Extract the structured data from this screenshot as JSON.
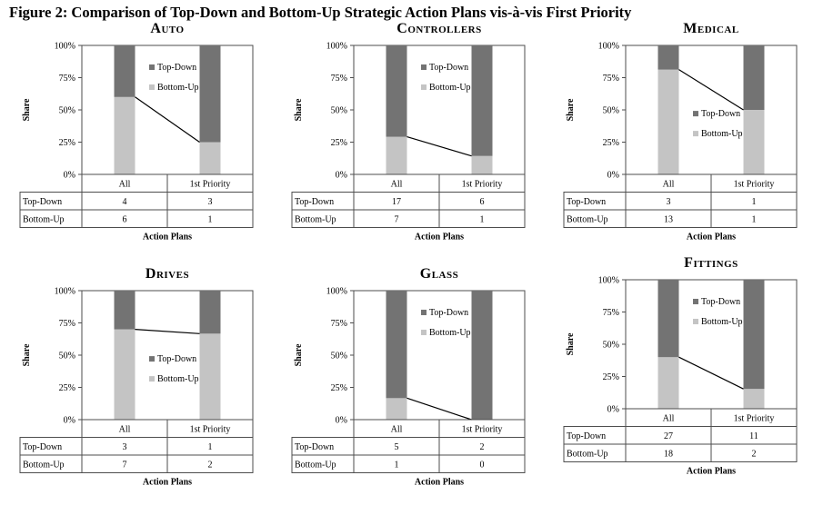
{
  "figure_title": "Figure 2: Comparison of Top-Down and Bottom-Up Strategic Action Plans vis-à-vis First Priority",
  "colors": {
    "top_down": "#737373",
    "bottom_up": "#c4c4c4",
    "grid": "#4d4d4d"
  },
  "chart_data": [
    {
      "type": "bar",
      "stacked": true,
      "percent": true,
      "title": "Auto",
      "xlabel": "Action Plans",
      "ylabel": "Share",
      "categories": [
        "All",
        "1st Priority"
      ],
      "yticks": [
        "0%",
        "25%",
        "50%",
        "75%",
        "100%"
      ],
      "ylim": [
        0,
        100
      ],
      "series": [
        {
          "name": "Top-Down",
          "values": [
            4,
            3
          ]
        },
        {
          "name": "Bottom-Up",
          "values": [
            6,
            1
          ]
        }
      ],
      "legend_position": "center-top"
    },
    {
      "type": "bar",
      "stacked": true,
      "percent": true,
      "title": "Controllers",
      "xlabel": "Action Plans",
      "ylabel": "Share",
      "categories": [
        "All",
        "1st Priority"
      ],
      "yticks": [
        "0%",
        "25%",
        "50%",
        "75%",
        "100%"
      ],
      "ylim": [
        0,
        100
      ],
      "series": [
        {
          "name": "Top-Down",
          "values": [
            17,
            6
          ]
        },
        {
          "name": "Bottom-Up",
          "values": [
            7,
            1
          ]
        }
      ],
      "legend_position": "center-top"
    },
    {
      "type": "bar",
      "stacked": true,
      "percent": true,
      "title": "Medical",
      "xlabel": "Action Plans",
      "ylabel": "Share",
      "categories": [
        "All",
        "1st Priority"
      ],
      "yticks": [
        "0%",
        "25%",
        "50%",
        "75%",
        "100%"
      ],
      "ylim": [
        0,
        100
      ],
      "series": [
        {
          "name": "Top-Down",
          "values": [
            3,
            1
          ]
        },
        {
          "name": "Bottom-Up",
          "values": [
            13,
            1
          ]
        }
      ],
      "legend_position": "center-middle"
    },
    {
      "type": "bar",
      "stacked": true,
      "percent": true,
      "title": "Drives",
      "xlabel": "Action Plans",
      "ylabel": "Share",
      "categories": [
        "All",
        "1st Priority"
      ],
      "yticks": [
        "0%",
        "25%",
        "50%",
        "75%",
        "100%"
      ],
      "ylim": [
        0,
        100
      ],
      "series": [
        {
          "name": "Top-Down",
          "values": [
            3,
            1
          ]
        },
        {
          "name": "Bottom-Up",
          "values": [
            7,
            2
          ]
        }
      ],
      "legend_position": "center-middle"
    },
    {
      "type": "bar",
      "stacked": true,
      "percent": true,
      "title": "Glass",
      "xlabel": "Action Plans",
      "ylabel": "Share",
      "categories": [
        "All",
        "1st Priority"
      ],
      "yticks": [
        "0%",
        "25%",
        "50%",
        "75%",
        "100%"
      ],
      "ylim": [
        0,
        100
      ],
      "series": [
        {
          "name": "Top-Down",
          "values": [
            5,
            2
          ]
        },
        {
          "name": "Bottom-Up",
          "values": [
            1,
            0
          ]
        }
      ],
      "legend_position": "center-top"
    },
    {
      "type": "bar",
      "stacked": true,
      "percent": true,
      "title": "Fittings",
      "xlabel": "Action Plans",
      "ylabel": "Share",
      "categories": [
        "All",
        "1st Priority"
      ],
      "yticks": [
        "0%",
        "25%",
        "50%",
        "75%",
        "100%"
      ],
      "ylim": [
        0,
        100
      ],
      "series": [
        {
          "name": "Top-Down",
          "values": [
            27,
            11
          ]
        },
        {
          "name": "Bottom-Up",
          "values": [
            18,
            2
          ]
        }
      ],
      "legend_position": "center-top"
    }
  ]
}
